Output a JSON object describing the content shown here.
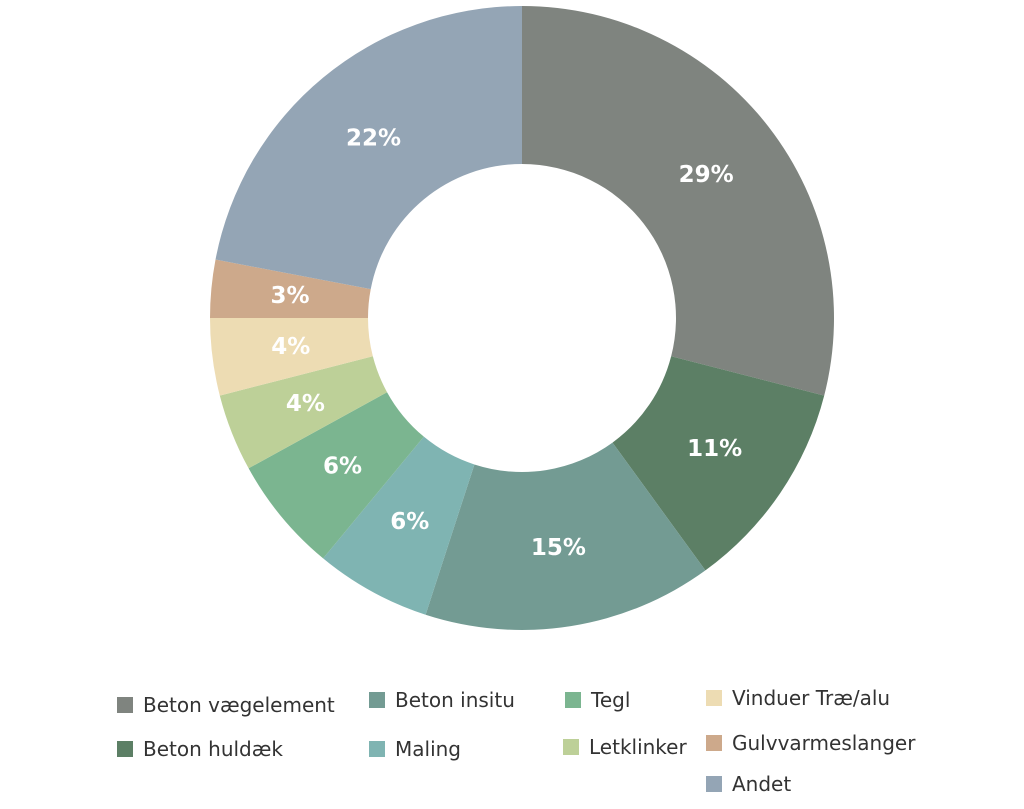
{
  "chart_data": {
    "type": "pie",
    "donut": true,
    "slices": [
      {
        "label": "Beton vægelement",
        "value": 29,
        "display": "29%",
        "color": "#7f847f"
      },
      {
        "label": "Beton huldæk",
        "value": 11,
        "display": "11%",
        "color": "#5c7f65"
      },
      {
        "label": "Beton insitu",
        "value": 15,
        "display": "15%",
        "color": "#739b93"
      },
      {
        "label": "Maling",
        "value": 6,
        "display": "6%",
        "color": "#7fb4b2"
      },
      {
        "label": "Tegl",
        "value": 6,
        "display": "6%",
        "color": "#7bb590"
      },
      {
        "label": "Letklinker",
        "value": 4,
        "display": "4%",
        "color": "#bdd098"
      },
      {
        "label": "Vinduer Træ/alu",
        "value": 4,
        "display": "4%",
        "color": "#eddcb3"
      },
      {
        "label": "Gulvvarmeslanger",
        "value": 3,
        "display": "3%",
        "color": "#cda98b"
      },
      {
        "label": "Andet",
        "value": 22,
        "display": "22%",
        "color": "#94a5b5"
      }
    ],
    "legend_placement": "bottom"
  },
  "legend": {
    "items": [
      {
        "label": "Beton vægelement",
        "color": "#7f847f"
      },
      {
        "label": "Beton insitu",
        "color": "#739b93"
      },
      {
        "label": "Tegl",
        "color": "#7bb590"
      },
      {
        "label": "Vinduer Træ/alu",
        "color": "#eddcb3"
      },
      {
        "label": "Beton huldæk",
        "color": "#5c7f65"
      },
      {
        "label": "Maling",
        "color": "#7fb4b2"
      },
      {
        "label": "Letklinker",
        "color": "#bdd098"
      },
      {
        "label": "Gulvvarmeslanger",
        "color": "#cda98b"
      },
      {
        "label": "Andet",
        "color": "#94a5b5"
      }
    ]
  }
}
